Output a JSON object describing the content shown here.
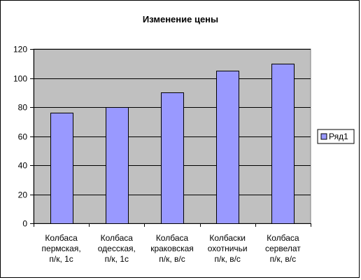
{
  "chart_data": {
    "type": "bar",
    "title": "Изменение цены",
    "categories": [
      [
        "Колбаса",
        "пермская,",
        "п/к, 1с"
      ],
      [
        "Колбаса",
        "одесская,",
        "п/к, 1с"
      ],
      [
        "Колбаса",
        "краковская",
        "п/к, в/с"
      ],
      [
        "Колбаски",
        "охотничьи",
        "п/к, в/с"
      ],
      [
        "Колбаса",
        "сервелат",
        "п/к, в/с"
      ]
    ],
    "series": [
      {
        "name": "Ряд1",
        "values": [
          76,
          80,
          90,
          105,
          110
        ]
      }
    ],
    "ylim": [
      0,
      120
    ],
    "yticks": [
      0,
      20,
      40,
      60,
      80,
      100,
      120
    ],
    "grid": true,
    "legend": "right",
    "colors": {
      "bar": "#9999ff",
      "plot_background": "#c0c0c0"
    }
  }
}
